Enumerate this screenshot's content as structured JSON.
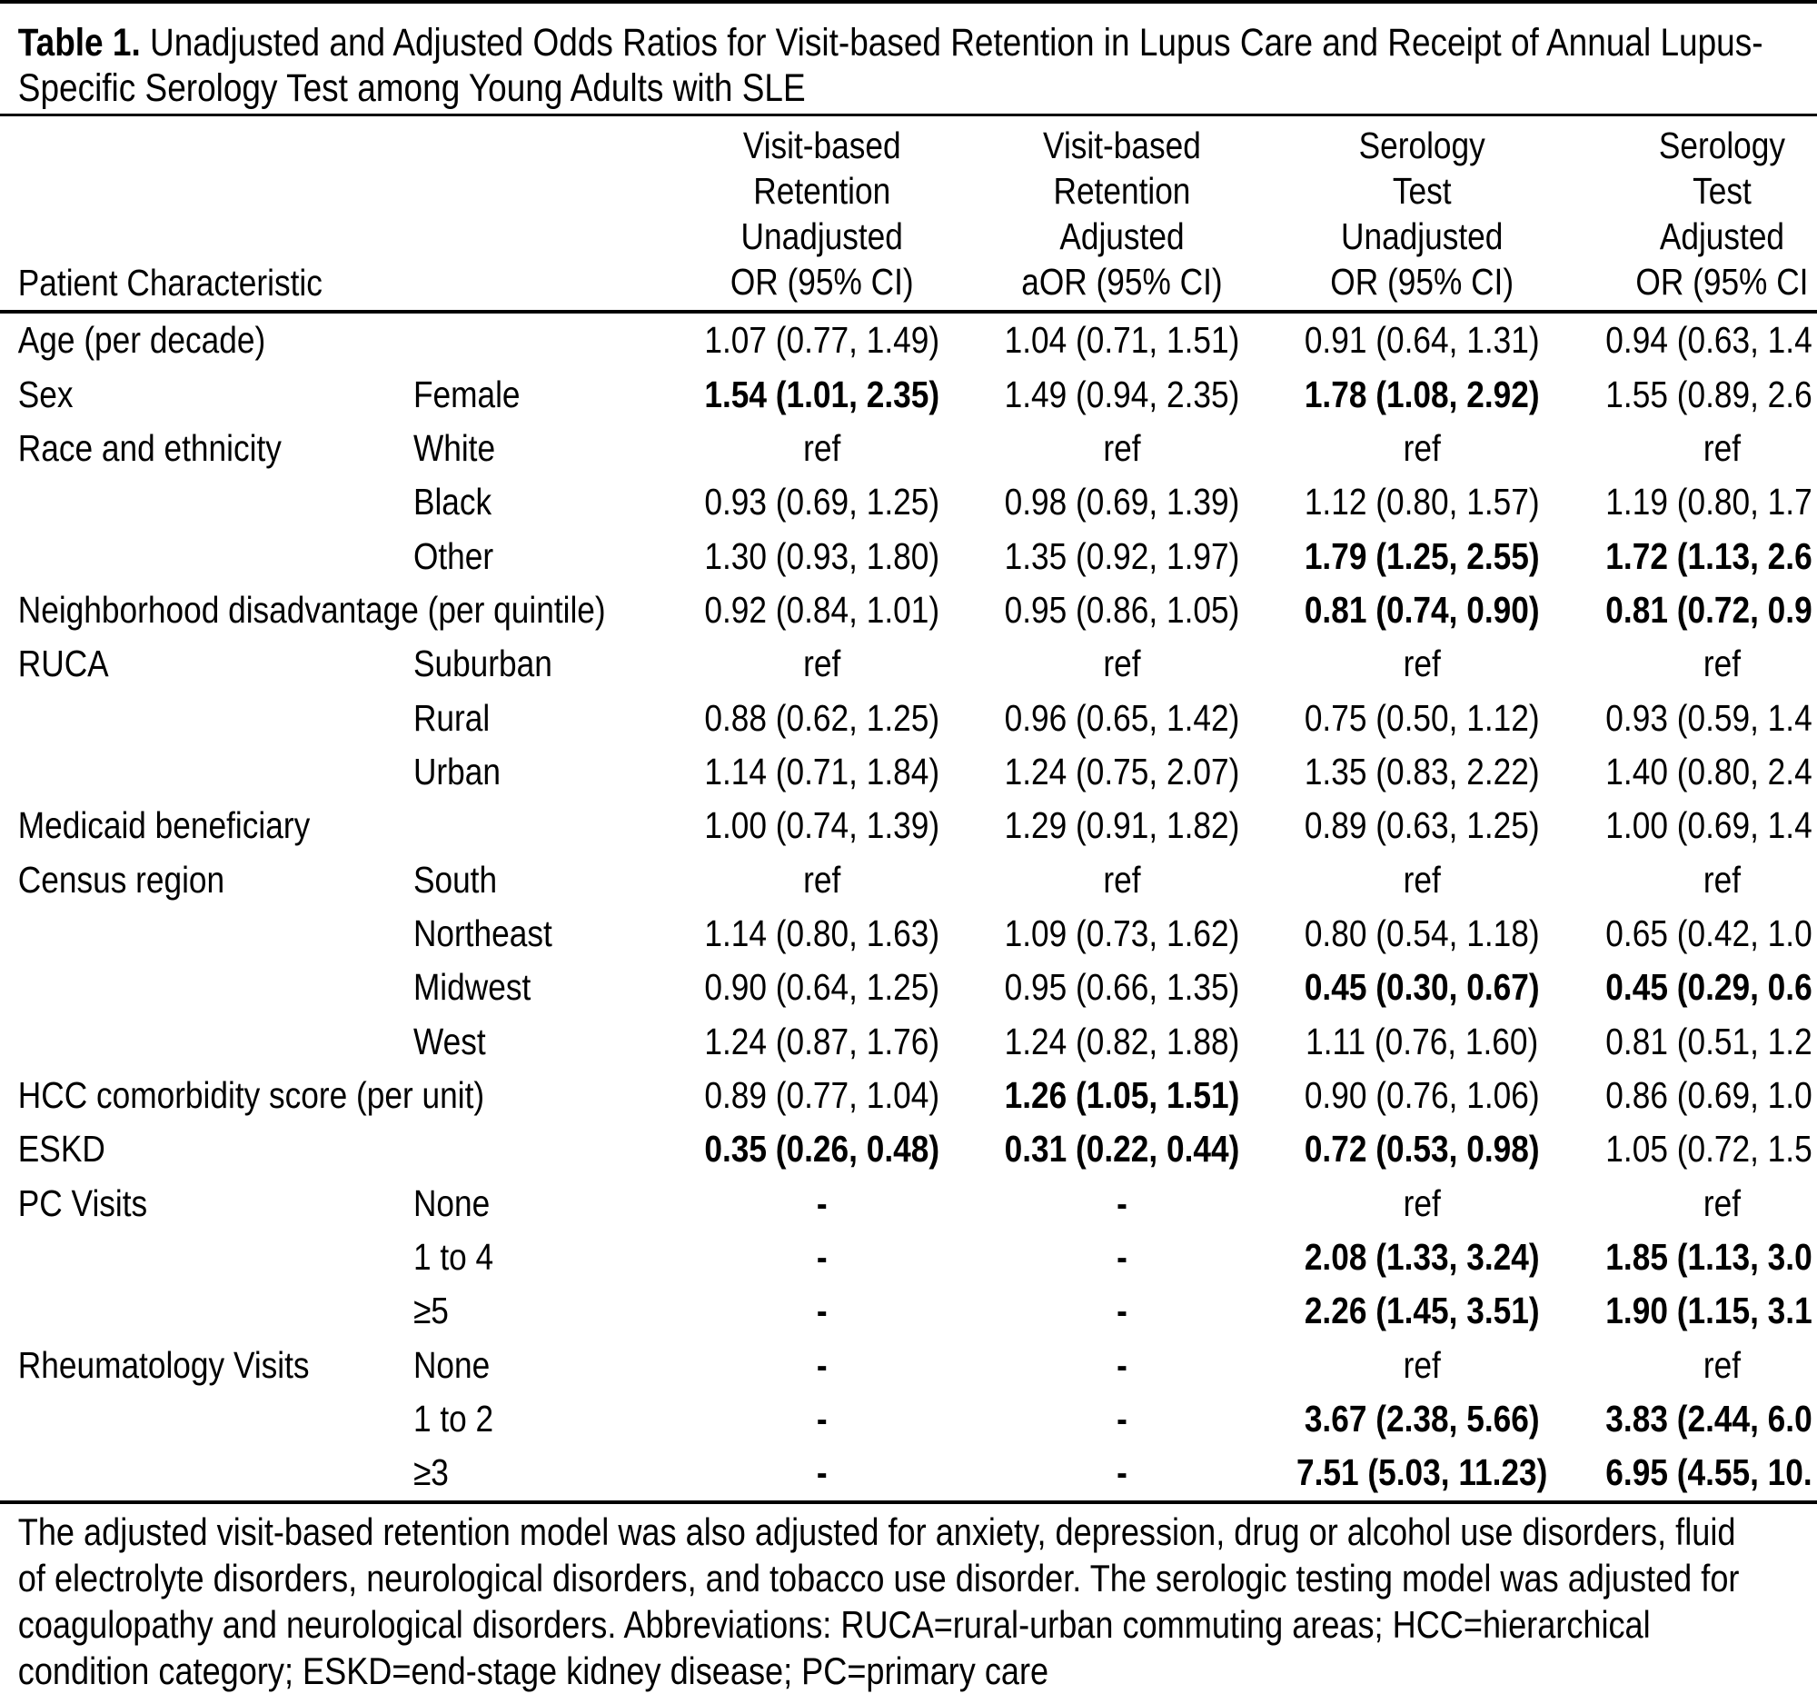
{
  "colors": {
    "background": "#ffffff",
    "text": "#000000",
    "rules": "#000000"
  },
  "title": {
    "prefix": "Table 1.",
    "line1_rest": " Unadjusted and Adjusted Odds Ratios for Visit-based Retention in Lupus Care and Receipt of Annual Lupus-",
    "line2": "Specific Serology Test among Young Adults with SLE"
  },
  "table": {
    "header": {
      "characteristic": "Patient Characteristic",
      "vbr_unadjusted": [
        "Visit-based",
        "Retention",
        "Unadjusted",
        "OR (95% CI)"
      ],
      "vbr_adjusted": [
        "Visit-based",
        "Retention",
        "Adjusted",
        "aOR (95% CI)"
      ],
      "serology_unadjusted": [
        "Serology",
        "Test",
        "Unadjusted",
        "OR (95% CI)"
      ],
      "serology_adjusted": [
        "Serology",
        "Test",
        "Adjusted",
        "OR (95% CI"
      ]
    },
    "rows": [
      {
        "characteristic": "Age (per decade)",
        "level": "",
        "vbr_unadjusted": {
          "text": "1.07 (0.77, 1.49)",
          "bold": false
        },
        "vbr_adjusted": {
          "text": "1.04 (0.71, 1.51)",
          "bold": false
        },
        "serology_unadjusted": {
          "text": "0.91 (0.64, 1.31)",
          "bold": false
        },
        "serology_adjusted": {
          "text": "0.94 (0.63, 1.4",
          "bold": false
        }
      },
      {
        "characteristic": "Sex",
        "level": "Female",
        "vbr_unadjusted": {
          "text": "1.54 (1.01, 2.35)",
          "bold": true
        },
        "vbr_adjusted": {
          "text": "1.49 (0.94, 2.35)",
          "bold": false
        },
        "serology_unadjusted": {
          "text": "1.78 (1.08, 2.92)",
          "bold": true
        },
        "serology_adjusted": {
          "text": "1.55 (0.89, 2.6",
          "bold": false
        }
      },
      {
        "characteristic": "Race and ethnicity",
        "level": "White",
        "vbr_unadjusted": {
          "text": "ref",
          "bold": false
        },
        "vbr_adjusted": {
          "text": "ref",
          "bold": false
        },
        "serology_unadjusted": {
          "text": "ref",
          "bold": false
        },
        "serology_adjusted": {
          "text": "ref",
          "bold": false
        }
      },
      {
        "characteristic": "",
        "level": "Black",
        "vbr_unadjusted": {
          "text": "0.93 (0.69, 1.25)",
          "bold": false
        },
        "vbr_adjusted": {
          "text": "0.98 (0.69, 1.39)",
          "bold": false
        },
        "serology_unadjusted": {
          "text": "1.12 (0.80, 1.57)",
          "bold": false
        },
        "serology_adjusted": {
          "text": "1.19 (0.80, 1.7",
          "bold": false
        }
      },
      {
        "characteristic": "",
        "level": "Other",
        "vbr_unadjusted": {
          "text": "1.30 (0.93, 1.80)",
          "bold": false
        },
        "vbr_adjusted": {
          "text": "1.35 (0.92, 1.97)",
          "bold": false
        },
        "serology_unadjusted": {
          "text": "1.79 (1.25, 2.55)",
          "bold": true
        },
        "serology_adjusted": {
          "text": "1.72 (1.13, 2.6",
          "bold": true
        }
      },
      {
        "characteristic": "Neighborhood disadvantage (per quintile)",
        "level": "",
        "vbr_unadjusted": {
          "text": "0.92 (0.84, 1.01)",
          "bold": false
        },
        "vbr_adjusted": {
          "text": "0.95 (0.86, 1.05)",
          "bold": false
        },
        "serology_unadjusted": {
          "text": "0.81 (0.74, 0.90)",
          "bold": true
        },
        "serology_adjusted": {
          "text": "0.81 (0.72, 0.9",
          "bold": true
        }
      },
      {
        "characteristic": "RUCA",
        "level": "Suburban",
        "vbr_unadjusted": {
          "text": "ref",
          "bold": false
        },
        "vbr_adjusted": {
          "text": "ref",
          "bold": false
        },
        "serology_unadjusted": {
          "text": "ref",
          "bold": false
        },
        "serology_adjusted": {
          "text": "ref",
          "bold": false
        }
      },
      {
        "characteristic": "",
        "level": "Rural",
        "vbr_unadjusted": {
          "text": "0.88 (0.62, 1.25)",
          "bold": false
        },
        "vbr_adjusted": {
          "text": "0.96 (0.65, 1.42)",
          "bold": false
        },
        "serology_unadjusted": {
          "text": "0.75 (0.50, 1.12)",
          "bold": false
        },
        "serology_adjusted": {
          "text": "0.93 (0.59, 1.4",
          "bold": false
        }
      },
      {
        "characteristic": "",
        "level": "Urban",
        "vbr_unadjusted": {
          "text": "1.14 (0.71, 1.84)",
          "bold": false
        },
        "vbr_adjusted": {
          "text": "1.24 (0.75, 2.07)",
          "bold": false
        },
        "serology_unadjusted": {
          "text": "1.35 (0.83, 2.22)",
          "bold": false
        },
        "serology_adjusted": {
          "text": "1.40 (0.80, 2.4",
          "bold": false
        }
      },
      {
        "characteristic": "Medicaid beneficiary",
        "level": "",
        "vbr_unadjusted": {
          "text": "1.00 (0.74, 1.39)",
          "bold": false
        },
        "vbr_adjusted": {
          "text": "1.29 (0.91, 1.82)",
          "bold": false
        },
        "serology_unadjusted": {
          "text": "0.89 (0.63, 1.25)",
          "bold": false
        },
        "serology_adjusted": {
          "text": "1.00 (0.69, 1.4",
          "bold": false
        }
      },
      {
        "characteristic": "Census region",
        "level": "South",
        "vbr_unadjusted": {
          "text": "ref",
          "bold": false
        },
        "vbr_adjusted": {
          "text": "ref",
          "bold": false
        },
        "serology_unadjusted": {
          "text": "ref",
          "bold": false
        },
        "serology_adjusted": {
          "text": "ref",
          "bold": false
        }
      },
      {
        "characteristic": "",
        "level": "Northeast",
        "vbr_unadjusted": {
          "text": "1.14 (0.80, 1.63)",
          "bold": false
        },
        "vbr_adjusted": {
          "text": "1.09 (0.73, 1.62)",
          "bold": false
        },
        "serology_unadjusted": {
          "text": "0.80 (0.54, 1.18)",
          "bold": false
        },
        "serology_adjusted": {
          "text": "0.65 (0.42, 1.0",
          "bold": false
        }
      },
      {
        "characteristic": "",
        "level": "Midwest",
        "vbr_unadjusted": {
          "text": "0.90 (0.64, 1.25)",
          "bold": false
        },
        "vbr_adjusted": {
          "text": "0.95 (0.66, 1.35)",
          "bold": false
        },
        "serology_unadjusted": {
          "text": "0.45 (0.30, 0.67)",
          "bold": true
        },
        "serology_adjusted": {
          "text": "0.45 (0.29, 0.6",
          "bold": true
        }
      },
      {
        "characteristic": "",
        "level": "West",
        "vbr_unadjusted": {
          "text": "1.24 (0.87, 1.76)",
          "bold": false
        },
        "vbr_adjusted": {
          "text": "1.24 (0.82, 1.88)",
          "bold": false
        },
        "serology_unadjusted": {
          "text": "1.11 (0.76, 1.60)",
          "bold": false
        },
        "serology_adjusted": {
          "text": "0.81 (0.51, 1.2",
          "bold": false
        }
      },
      {
        "characteristic": "HCC comorbidity score (per unit)",
        "level": "",
        "vbr_unadjusted": {
          "text": "0.89 (0.77, 1.04)",
          "bold": false
        },
        "vbr_adjusted": {
          "text": "1.26 (1.05, 1.51)",
          "bold": true
        },
        "serology_unadjusted": {
          "text": "0.90 (0.76, 1.06)",
          "bold": false
        },
        "serology_adjusted": {
          "text": "0.86 (0.69, 1.0",
          "bold": false
        }
      },
      {
        "characteristic": "ESKD",
        "level": "",
        "vbr_unadjusted": {
          "text": "0.35 (0.26, 0.48)",
          "bold": true
        },
        "vbr_adjusted": {
          "text": "0.31 (0.22, 0.44)",
          "bold": true
        },
        "serology_unadjusted": {
          "text": "0.72 (0.53, 0.98)",
          "bold": true
        },
        "serology_adjusted": {
          "text": "1.05 (0.72, 1.5",
          "bold": false
        }
      },
      {
        "characteristic": "PC Visits",
        "level": "None",
        "vbr_unadjusted": {
          "text": "-",
          "bold": true
        },
        "vbr_adjusted": {
          "text": "-",
          "bold": true
        },
        "serology_unadjusted": {
          "text": "ref",
          "bold": false
        },
        "serology_adjusted": {
          "text": "ref",
          "bold": false
        }
      },
      {
        "characteristic": "",
        "level": "1 to 4",
        "vbr_unadjusted": {
          "text": "-",
          "bold": true
        },
        "vbr_adjusted": {
          "text": "-",
          "bold": true
        },
        "serology_unadjusted": {
          "text": "2.08 (1.33, 3.24)",
          "bold": true
        },
        "serology_adjusted": {
          "text": "1.85 (1.13, 3.0",
          "bold": true
        }
      },
      {
        "characteristic": "",
        "level": "≥5",
        "vbr_unadjusted": {
          "text": "-",
          "bold": true
        },
        "vbr_adjusted": {
          "text": "-",
          "bold": true
        },
        "serology_unadjusted": {
          "text": "2.26 (1.45, 3.51)",
          "bold": true
        },
        "serology_adjusted": {
          "text": "1.90 (1.15, 3.1",
          "bold": true
        }
      },
      {
        "characteristic": "Rheumatology Visits",
        "level": "None",
        "vbr_unadjusted": {
          "text": "-",
          "bold": true
        },
        "vbr_adjusted": {
          "text": "-",
          "bold": true
        },
        "serology_unadjusted": {
          "text": "ref",
          "bold": false
        },
        "serology_adjusted": {
          "text": "ref",
          "bold": false
        }
      },
      {
        "characteristic": "",
        "level": "1 to 2",
        "vbr_unadjusted": {
          "text": "-",
          "bold": true
        },
        "vbr_adjusted": {
          "text": "-",
          "bold": true
        },
        "serology_unadjusted": {
          "text": "3.67 (2.38, 5.66)",
          "bold": true
        },
        "serology_adjusted": {
          "text": "3.83 (2.44, 6.0",
          "bold": true
        }
      },
      {
        "characteristic": "",
        "level": "≥3",
        "vbr_unadjusted": {
          "text": "-",
          "bold": true
        },
        "vbr_adjusted": {
          "text": "-",
          "bold": true
        },
        "serology_unadjusted": {
          "text": "7.51 (5.03, 11.23)",
          "bold": true
        },
        "serology_adjusted": {
          "text": "6.95 (4.55, 10.",
          "bold": true
        }
      }
    ]
  },
  "footnote": {
    "lines": [
      "The adjusted visit-based retention model was also adjusted for anxiety, depression, drug or alcohol use disorders, fluid",
      "of electrolyte disorders, neurological disorders, and tobacco use disorder. The serologic testing model was adjusted for",
      "coagulopathy and neurological disorders. Abbreviations: RUCA=rural-urban commuting areas; HCC=hierarchical",
      "condition category; ESKD=end-stage kidney disease; PC=primary care"
    ]
  }
}
